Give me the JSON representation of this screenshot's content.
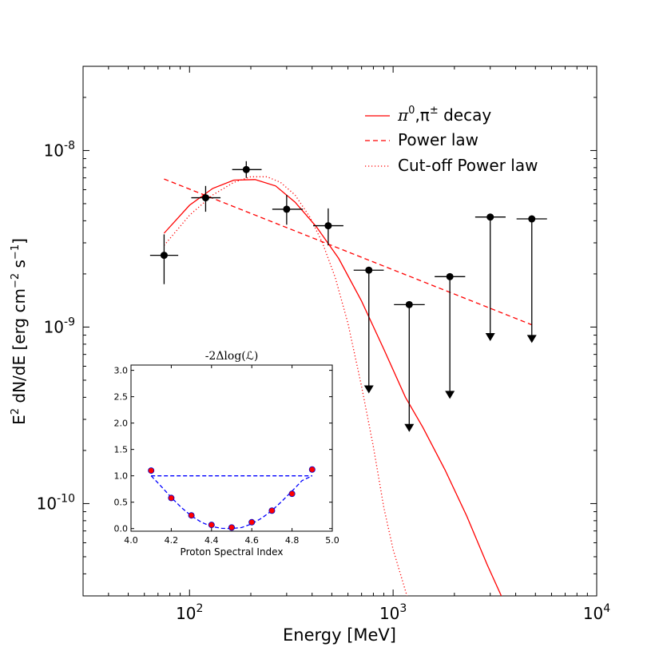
{
  "chart_data": [
    {
      "type": "scatter",
      "scale": "log-log",
      "xlabel": "Energy [MeV]",
      "ylabel_parts": {
        "a": "E",
        "b": "2",
        "c": " dN/dE [erg cm",
        "d": "−2",
        "e": " s",
        "f": "−1",
        "g": "]"
      },
      "xlim": [
        30,
        10000
      ],
      "ylim": [
        3e-11,
        3e-08
      ],
      "x_ticks": [
        {
          "value": 100,
          "base": "10",
          "exp": "2"
        },
        {
          "value": 1000,
          "base": "10",
          "exp": "3"
        },
        {
          "value": 10000,
          "base": "10",
          "exp": "4"
        }
      ],
      "y_ticks": [
        {
          "value": 1e-10,
          "base": "10",
          "exp": "-10"
        },
        {
          "value": 1e-09,
          "base": "10",
          "exp": "-9"
        },
        {
          "value": 1e-08,
          "base": "10",
          "exp": "-8"
        }
      ],
      "legend": {
        "position": "upper-right",
        "entries": [
          {
            "label_parts": [
              "π",
              "0",
              ",π",
              "±",
              " decay"
            ],
            "style": "solid",
            "color": "#ff0000"
          },
          {
            "label": "Power law",
            "style": "dashed",
            "color": "#ff0000"
          },
          {
            "label": "Cut-off Power law",
            "style": "dotted",
            "color": "#ff0000"
          }
        ]
      },
      "data_points": [
        {
          "x": 75,
          "y": 2.55e-09,
          "xerr": [
            64,
            88
          ],
          "yerr": [
            1.75e-09,
            3.35e-09
          ]
        },
        {
          "x": 120,
          "y": 5.4e-09,
          "xerr": [
            102,
            142
          ],
          "yerr": [
            4.5e-09,
            6.3e-09
          ]
        },
        {
          "x": 190,
          "y": 7.8e-09,
          "xerr": [
            162,
            226
          ],
          "yerr": [
            7e-09,
            8.7e-09
          ]
        },
        {
          "x": 300,
          "y": 4.65e-09,
          "xerr": [
            255,
            360
          ],
          "yerr": [
            3.8e-09,
            5.6e-09
          ]
        },
        {
          "x": 480,
          "y": 3.75e-09,
          "xerr": [
            405,
            570
          ],
          "yerr": [
            2.9e-09,
            4.7e-09
          ]
        }
      ],
      "upper_limits": [
        {
          "x": 760,
          "y": 2.1e-09,
          "xerr": [
            640,
            900
          ],
          "arrow_to": 4.3e-10
        },
        {
          "x": 1200,
          "y": 1.34e-09,
          "xerr": [
            1010,
            1430
          ],
          "arrow_to": 2.6e-10
        },
        {
          "x": 1900,
          "y": 1.93e-09,
          "xerr": [
            1600,
            2260
          ],
          "arrow_to": 4e-10
        },
        {
          "x": 3000,
          "y": 4.2e-09,
          "xerr": [
            2530,
            3570
          ],
          "arrow_to": 8.5e-10
        },
        {
          "x": 4800,
          "y": 4.1e-09,
          "xerr": [
            4040,
            5700
          ],
          "arrow_to": 8.3e-10
        }
      ],
      "series": [
        {
          "name": "pi-decay",
          "style": "solid",
          "color": "#ff0000",
          "x": [
            75,
            100,
            130,
            165,
            210,
            265,
            330,
            420,
            540,
            700,
            900,
            1150,
            1400,
            1800,
            2300,
            2900,
            3400
          ],
          "y": [
            3.4e-09,
            4.9e-09,
            6.1e-09,
            6.8e-09,
            6.85e-09,
            6.3e-09,
            5.1e-09,
            3.7e-09,
            2.45e-09,
            1.4e-09,
            7.5e-10,
            4e-10,
            2.7e-10,
            1.55e-10,
            8.5e-11,
            4.5e-11,
            3e-11
          ]
        },
        {
          "name": "power-law",
          "style": "dashed",
          "color": "#ff0000",
          "x": [
            75,
            4800
          ],
          "y": [
            6.9e-09,
            1.03e-09
          ]
        },
        {
          "name": "cutoff-power-law",
          "style": "dotted",
          "color": "#ff0000",
          "x": [
            75,
            100,
            130,
            165,
            200,
            240,
            280,
            330,
            390,
            450,
            520,
            600,
            700,
            800,
            900,
            1000,
            1100,
            1170
          ],
          "y": [
            2.9e-09,
            4.3e-09,
            5.6e-09,
            6.6e-09,
            7.1e-09,
            7.1e-09,
            6.6e-09,
            5.6e-09,
            4.2e-09,
            3e-09,
            1.9e-09,
            1.05e-09,
            4.6e-10,
            2.1e-10,
            9.5e-11,
            5.5e-11,
            3.8e-11,
            3e-11
          ]
        }
      ]
    },
    {
      "type": "scatter",
      "title": "-2Δlog(ℒ)",
      "xlabel": "Proton Spectral Index",
      "xlim": [
        4.0,
        5.0
      ],
      "ylim": [
        -0.05,
        3.1
      ],
      "x_ticks": [
        "4.0",
        "4.2",
        "4.4",
        "4.6",
        "4.8",
        "5.0"
      ],
      "y_ticks": [
        "0.0",
        "0.5",
        "1.0",
        "1.5",
        "2.0",
        "2.5",
        "3.0"
      ],
      "points": {
        "x": [
          4.1,
          4.2,
          4.3,
          4.4,
          4.5,
          4.6,
          4.7,
          4.8,
          4.9
        ],
        "y": [
          1.1,
          0.58,
          0.25,
          0.07,
          0.02,
          0.12,
          0.34,
          0.66,
          1.12
        ],
        "color": "#ff0000",
        "edge_color": "#0000cc"
      },
      "fit_curve": {
        "style": "dashed",
        "color": "#0000ff",
        "x": [
          4.1,
          4.15,
          4.2,
          4.25,
          4.3,
          4.35,
          4.4,
          4.45,
          4.5,
          4.55,
          4.6,
          4.65,
          4.7,
          4.75,
          4.8,
          4.85,
          4.9
        ],
        "y": [
          1.0,
          0.8,
          0.59,
          0.4,
          0.24,
          0.12,
          0.04,
          0.005,
          0.0,
          0.02,
          0.09,
          0.2,
          0.34,
          0.52,
          0.71,
          0.91,
          1.0
        ]
      },
      "threshold": {
        "y": 1.0,
        "x_from": 4.1,
        "x_to": 4.9,
        "style": "dashed",
        "color": "#0000ff"
      }
    }
  ]
}
